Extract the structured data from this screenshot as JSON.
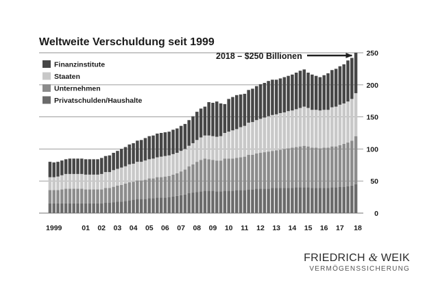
{
  "chart_data": {
    "type": "bar",
    "stacked": true,
    "title": "Weltweite Verschuldung seit 1999",
    "xlabel": "",
    "ylabel": "",
    "ylim": [
      0,
      250
    ],
    "yticks": [
      0,
      50,
      100,
      150,
      200,
      250
    ],
    "y_axis_side": "right",
    "grid": true,
    "legend_position": "top-left",
    "x_tick_labels": [
      "1999",
      "01",
      "02",
      "03",
      "04",
      "05",
      "06",
      "07",
      "08",
      "09",
      "10",
      "11",
      "12",
      "13",
      "14",
      "15",
      "16",
      "17",
      "18"
    ],
    "x_tick_years": [
      1999,
      2001,
      2002,
      2003,
      2004,
      2005,
      2006,
      2007,
      2008,
      2009,
      2010,
      2011,
      2012,
      2013,
      2014,
      2015,
      2016,
      2017,
      2018
    ],
    "x_start_year": 1999,
    "bars_per_year": 4,
    "series": [
      {
        "name": "Privatschulden/Haushalte",
        "color": "#6b6b6b",
        "values": [
          15,
          15,
          15,
          15,
          15,
          15,
          15,
          15,
          15,
          15,
          15,
          15,
          15,
          15,
          16,
          16,
          17,
          18,
          18,
          19,
          20,
          21,
          22,
          22,
          22,
          23,
          23,
          24,
          24,
          24,
          25,
          26,
          27,
          28,
          29,
          31,
          32,
          33,
          34,
          35,
          35,
          35,
          34,
          34,
          35,
          35,
          35,
          36,
          36,
          36,
          37,
          37,
          38,
          38,
          38,
          38,
          39,
          39,
          39,
          39,
          39,
          39,
          40,
          40,
          40,
          40,
          39,
          39,
          39,
          39,
          39,
          40,
          40,
          41,
          41,
          42,
          43,
          45
        ]
      },
      {
        "name": "Unternehmen",
        "color": "#8c8c8c",
        "values": [
          21,
          21,
          21,
          22,
          23,
          23,
          23,
          23,
          23,
          22,
          22,
          22,
          22,
          22,
          23,
          23,
          24,
          25,
          26,
          27,
          28,
          28,
          29,
          29,
          30,
          31,
          31,
          32,
          32,
          33,
          33,
          34,
          35,
          37,
          39,
          42,
          44,
          47,
          49,
          50,
          49,
          48,
          48,
          48,
          50,
          50,
          50,
          50,
          51,
          52,
          54,
          54,
          55,
          56,
          57,
          58,
          58,
          59,
          60,
          61,
          62,
          63,
          63,
          64,
          65,
          64,
          63,
          63,
          62,
          63,
          63,
          64,
          64,
          65,
          67,
          68,
          70,
          75
        ]
      },
      {
        "name": "Staaten",
        "color": "#c8c8c8",
        "values": [
          20,
          20,
          21,
          22,
          23,
          23,
          23,
          23,
          23,
          23,
          23,
          23,
          23,
          24,
          25,
          25,
          26,
          26,
          27,
          27,
          28,
          28,
          29,
          29,
          30,
          30,
          31,
          31,
          32,
          32,
          32,
          32,
          32,
          32,
          32,
          32,
          33,
          34,
          35,
          36,
          37,
          37,
          37,
          38,
          40,
          42,
          44,
          45,
          47,
          48,
          50,
          51,
          52,
          53,
          54,
          55,
          56,
          56,
          57,
          57,
          58,
          58,
          59,
          60,
          61,
          60,
          59,
          59,
          59,
          59,
          59,
          61,
          62,
          63,
          63,
          64,
          65,
          67
        ]
      },
      {
        "name": "Finanzinstitute",
        "color": "#464646",
        "values": [
          24,
          23,
          23,
          23,
          23,
          24,
          24,
          24,
          24,
          24,
          24,
          24,
          24,
          25,
          25,
          26,
          27,
          28,
          29,
          30,
          31,
          32,
          33,
          34,
          35,
          36,
          36,
          37,
          37,
          37,
          37,
          38,
          38,
          39,
          39,
          40,
          42,
          44,
          45,
          45,
          52,
          52,
          55,
          51,
          45,
          51,
          52,
          53,
          51,
          50,
          51,
          52,
          53,
          54,
          54,
          55,
          55,
          54,
          54,
          55,
          55,
          56,
          57,
          58,
          58,
          55,
          55,
          53,
          52,
          54,
          57,
          58,
          59,
          60,
          61,
          64,
          64,
          63
        ]
      }
    ],
    "annotations": [
      {
        "text": "2018 – $250 Billionen",
        "points_to": {
          "year": 2018,
          "value": 250
        },
        "arrow": true
      }
    ]
  },
  "branding": {
    "company_name_part1": "FRIEDRICH",
    "company_name_amp": "&",
    "company_name_part2": "WEIK",
    "company_tagline": "VERMÖGENSSICHERUNG"
  }
}
